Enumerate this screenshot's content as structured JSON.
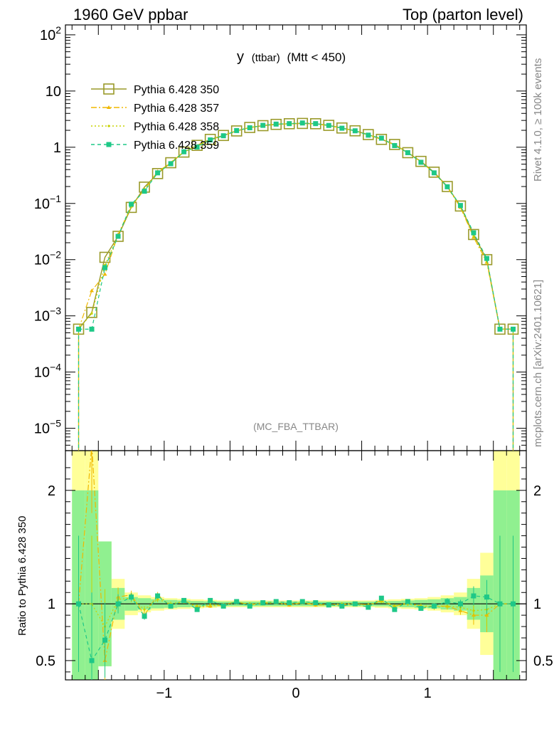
{
  "header": {
    "left": "1960 GeV ppbar",
    "right": "Top (parton level)"
  },
  "side": {
    "rivet": "Rivet 4.1.0, ≥ 100k events",
    "mcplots": "mcplots.cern.ch [arXiv:2401.10621]"
  },
  "plot_title": {
    "main": "y",
    "small": "(ttbar)",
    "rest": "(Mtt < 450)"
  },
  "watermark": "(MC_FBA_TTBAR)",
  "ratio_ylabel": "Ratio to Pythia 6.428 350",
  "chart_data": {
    "type": "line",
    "title": "y (ttbar) (Mtt < 450)",
    "xlabel": "",
    "ylabel": "",
    "xlim": [
      -1.75,
      1.75
    ],
    "ylim": [
      4e-06,
      150
    ],
    "yscale": "log",
    "ratio_ylim": [
      0.33,
      2.35
    ],
    "x": [
      -1.65,
      -1.55,
      -1.45,
      -1.35,
      -1.25,
      -1.15,
      -1.05,
      -0.95,
      -0.85,
      -0.75,
      -0.65,
      -0.55,
      -0.45,
      -0.35,
      -0.25,
      -0.15,
      -0.05,
      0.05,
      0.15,
      0.25,
      0.35,
      0.45,
      0.55,
      0.65,
      0.75,
      0.85,
      0.95,
      1.05,
      1.15,
      1.25,
      1.35,
      1.45,
      1.55,
      1.65
    ],
    "x_ticks": [
      -1,
      0,
      1
    ],
    "x_tick_labels": [
      "−1",
      "0",
      "1"
    ],
    "y_tick_labels": [
      "10^-5",
      "10^-4",
      "10^-3",
      "10^-2",
      "10^-1",
      "1",
      "10",
      "10^2"
    ],
    "ratio_tick_labels": [
      "0.5",
      "1",
      "2"
    ],
    "series": [
      {
        "name": "Pythia 6.428 350",
        "color": "#9a9a2a",
        "marker": "open-square",
        "values": [
          0.00058,
          0.00115,
          0.011,
          0.026,
          0.085,
          0.195,
          0.34,
          0.53,
          0.82,
          1.08,
          1.38,
          1.62,
          1.95,
          2.25,
          2.42,
          2.55,
          2.62,
          2.65,
          2.62,
          2.45,
          2.2,
          1.96,
          1.68,
          1.38,
          1.12,
          0.8,
          0.56,
          0.36,
          0.2,
          0.09,
          0.028,
          0.01,
          0.00058,
          0.00058
        ],
        "ratio": [
          1,
          1,
          1,
          1,
          1,
          1,
          1,
          1,
          1,
          1,
          1,
          1,
          1,
          1,
          1,
          1,
          1,
          1,
          1,
          1,
          1,
          1,
          1,
          1,
          1,
          1,
          1,
          1,
          1,
          1,
          1,
          1,
          1,
          1
        ]
      },
      {
        "name": "Pythia 6.428 357",
        "color": "#f0b800",
        "marker": "triangle",
        "values": [
          0.00058,
          0.0028,
          0.0055,
          0.028,
          0.09,
          0.175,
          0.37,
          0.52,
          0.84,
          1.05,
          1.35,
          1.6,
          1.98,
          2.22,
          2.44,
          2.58,
          2.6,
          2.68,
          2.6,
          2.42,
          2.18,
          1.95,
          1.66,
          1.42,
          1.1,
          0.81,
          0.55,
          0.35,
          0.196,
          0.085,
          0.025,
          0.009,
          0.00058,
          0.00058
        ],
        "ratio": [
          1.0,
          2.4,
          0.5,
          1.06,
          1.08,
          0.9,
          1.08,
          0.98,
          1.03,
          0.97,
          0.98,
          0.99,
          1.02,
          0.99,
          1.01,
          1.01,
          0.99,
          1.01,
          0.99,
          0.99,
          0.99,
          1.0,
          0.99,
          1.03,
          0.98,
          1.01,
          0.98,
          0.98,
          0.98,
          0.94,
          0.9,
          0.9,
          1.0,
          1.0
        ]
      },
      {
        "name": "Pythia 6.428 358",
        "color": "#c8d200",
        "marker": "dot",
        "values": [
          0.00058,
          0.0011,
          0.008,
          0.027,
          0.088,
          0.18,
          0.35,
          0.54,
          0.83,
          1.06,
          1.37,
          1.61,
          1.96,
          2.24,
          2.43,
          2.57,
          2.61,
          2.66,
          2.61,
          2.43,
          2.19,
          1.95,
          1.67,
          1.4,
          1.1,
          0.8,
          0.55,
          0.35,
          0.2,
          0.088,
          0.026,
          0.0095,
          0.00058,
          0.00058
        ],
        "ratio": [
          1.0,
          1.0,
          0.8,
          1.04,
          1.05,
          0.95,
          1.04,
          1.0,
          1.02,
          0.98,
          0.99,
          0.99,
          1.01,
          1.0,
          1.0,
          1.01,
          1.0,
          1.01,
          1.0,
          0.99,
          1.0,
          1.0,
          0.99,
          1.02,
          0.98,
          1.0,
          0.98,
          0.97,
          0.98,
          0.97,
          0.94,
          0.95,
          1.0,
          1.0
        ]
      },
      {
        "name": "Pythia 6.428 359",
        "color": "#1ec887",
        "marker": "filled-square",
        "values": [
          0.00058,
          0.00058,
          0.0072,
          0.026,
          0.097,
          0.165,
          0.35,
          0.51,
          0.83,
          1.01,
          1.35,
          1.6,
          1.98,
          2.22,
          2.45,
          2.58,
          2.63,
          2.7,
          2.63,
          2.44,
          2.18,
          1.96,
          1.64,
          1.45,
          1.07,
          0.8,
          0.54,
          0.35,
          0.198,
          0.092,
          0.03,
          0.0105,
          0.00058,
          0.00058
        ],
        "ratio": [
          1.0,
          0.5,
          0.68,
          1.0,
          1.06,
          0.89,
          1.07,
          0.98,
          1.03,
          0.95,
          1.03,
          0.98,
          1.02,
          0.98,
          1.01,
          1.02,
          1.01,
          1.02,
          1.01,
          0.99,
          0.98,
          1.0,
          0.97,
          1.05,
          0.95,
          1.02,
          0.96,
          0.98,
          1.02,
          1.0,
          1.07,
          1.06,
          1.0,
          1.0
        ]
      }
    ],
    "ratio_bands": {
      "green_half_width": [
        1.0,
        1.0,
        0.55,
        0.14,
        0.06,
        0.05,
        0.04,
        0.035,
        0.03,
        0.025,
        0.022,
        0.02,
        0.02,
        0.02,
        0.02,
        0.02,
        0.02,
        0.02,
        0.02,
        0.02,
        0.02,
        0.02,
        0.02,
        0.022,
        0.025,
        0.03,
        0.035,
        0.04,
        0.05,
        0.06,
        0.14,
        0.25,
        1.0,
        1.0
      ],
      "yellow_half_width": [
        1.4,
        1.4,
        0.55,
        0.22,
        0.1,
        0.075,
        0.06,
        0.05,
        0.045,
        0.04,
        0.035,
        0.03,
        0.03,
        0.03,
        0.03,
        0.03,
        0.03,
        0.03,
        0.03,
        0.03,
        0.03,
        0.03,
        0.03,
        0.035,
        0.04,
        0.045,
        0.05,
        0.06,
        0.075,
        0.1,
        0.22,
        0.45,
        1.4,
        1.4
      ]
    }
  }
}
